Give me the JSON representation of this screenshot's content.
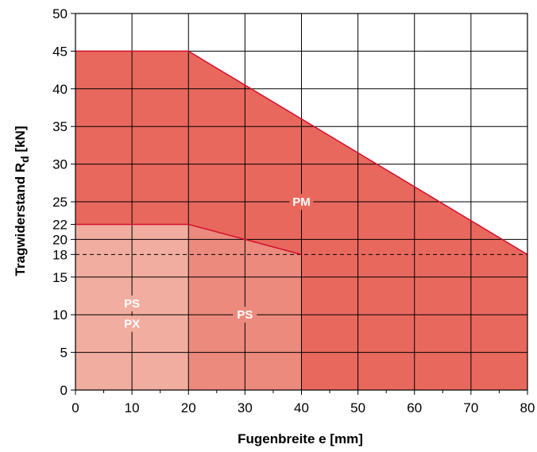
{
  "chart_data": {
    "type": "area",
    "xlabel": "Fugenbreite e [mm]",
    "ylabel_main": "Tragwiderstand R",
    "ylabel_sub": "d",
    "ylabel_unit": " [kN]",
    "xlim": [
      0,
      80
    ],
    "ylim": [
      0,
      50
    ],
    "x_ticks": [
      0,
      10,
      20,
      30,
      40,
      50,
      60,
      70,
      80
    ],
    "y_ticks": [
      0,
      5,
      10,
      15,
      18,
      20,
      22,
      25,
      30,
      35,
      40,
      45,
      50
    ],
    "grid": true,
    "reference_line": {
      "y": 18,
      "style": "dashed"
    },
    "series": [
      {
        "name": "PM",
        "x": [
          0,
          20,
          80
        ],
        "y": [
          45,
          45,
          18
        ],
        "color": "#e8685d"
      },
      {
        "name": "PS",
        "x": [
          0,
          20,
          40
        ],
        "y": [
          22,
          22,
          18
        ],
        "color": "#ec8a7e"
      },
      {
        "name": "PS PX",
        "x": [
          0,
          20
        ],
        "y": [
          22,
          22
        ],
        "color": "#f1ada0"
      }
    ],
    "labels": [
      {
        "text": "PM",
        "x": 40,
        "y": 25
      },
      {
        "text": "PS",
        "x": 30,
        "y": 10
      },
      {
        "text": "PS",
        "x": 10,
        "y": 11.5
      },
      {
        "text": "PX",
        "x": 10,
        "y": 8.8
      }
    ]
  }
}
